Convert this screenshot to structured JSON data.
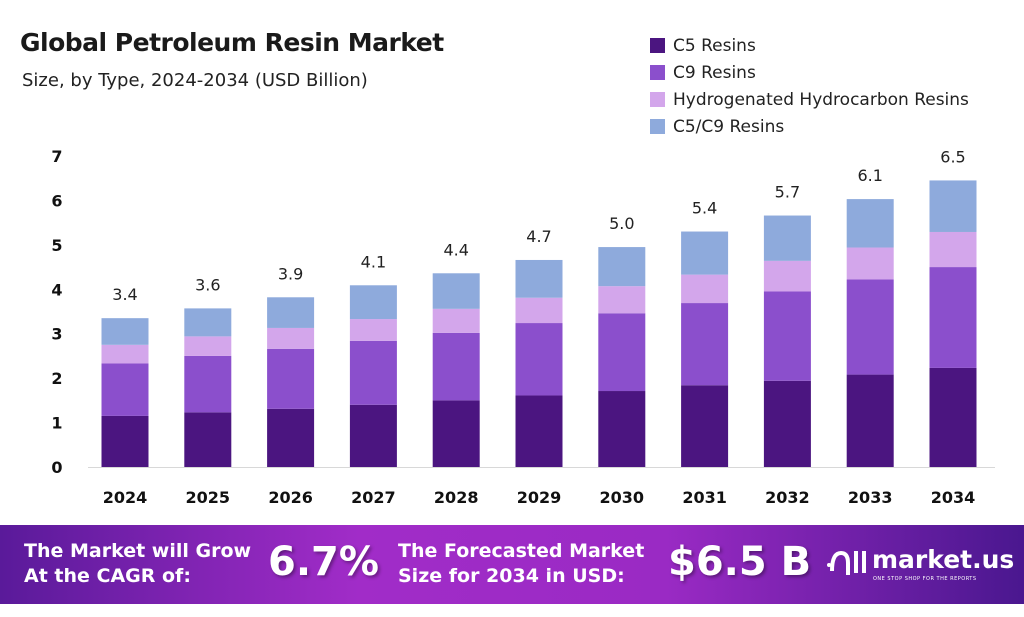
{
  "chart_data": {
    "type": "bar",
    "stacked": true,
    "title": "Global Petroleum Resin Market",
    "subtitle": "Size, by Type, 2024-2034 (USD Billion)",
    "xlabel": "",
    "ylabel": "",
    "ylim": [
      0,
      7
    ],
    "yticks": [
      0,
      1,
      2,
      3,
      4,
      5,
      6,
      7
    ],
    "grid": false,
    "legend_position": "top-right",
    "categories": [
      "2024",
      "2025",
      "2026",
      "2027",
      "2028",
      "2029",
      "2030",
      "2031",
      "2032",
      "2033",
      "2034"
    ],
    "series": [
      {
        "name": "C5 Resins",
        "color": "#4b1580",
        "values": [
          1.15,
          1.23,
          1.31,
          1.4,
          1.5,
          1.61,
          1.71,
          1.84,
          1.94,
          2.08,
          2.23
        ]
      },
      {
        "name": "C9 Resins",
        "color": "#8b4fcc",
        "values": [
          1.18,
          1.27,
          1.35,
          1.44,
          1.52,
          1.63,
          1.75,
          1.85,
          2.01,
          2.14,
          2.27
        ]
      },
      {
        "name": "Hydrogenated Hydrocarbon Resins",
        "color": "#d3a6eb",
        "values": [
          0.42,
          0.44,
          0.47,
          0.49,
          0.54,
          0.57,
          0.61,
          0.64,
          0.69,
          0.72,
          0.79
        ]
      },
      {
        "name": "C5/C9 Resins",
        "color": "#8eaadc",
        "values": [
          0.6,
          0.63,
          0.69,
          0.76,
          0.8,
          0.85,
          0.88,
          0.97,
          1.02,
          1.09,
          1.16
        ]
      }
    ],
    "totals": [
      "3.4",
      "3.6",
      "3.9",
      "4.1",
      "4.4",
      "4.7",
      "5.0",
      "5.4",
      "5.7",
      "6.1",
      "6.5"
    ]
  },
  "footer": {
    "cagr_text_line1": "The Market will Grow",
    "cagr_text_line2": "At the CAGR of:",
    "cagr_value": "6.7%",
    "forecast_text_line1": "The Forecasted Market",
    "forecast_text_line2": "Size for 2034 in USD:",
    "forecast_value": "$6.5 B",
    "logo_text": "market.us",
    "logo_tagline": "ONE STOP SHOP FOR THE REPORTS"
  }
}
